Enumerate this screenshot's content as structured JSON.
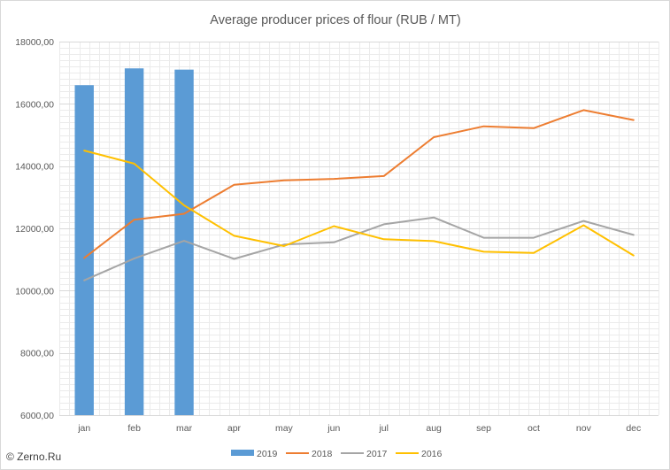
{
  "chart_data": {
    "type": "bar",
    "title": "Average producer prices of flour (RUB / MT)",
    "xlabel": "",
    "ylabel": "",
    "categories": [
      "jan",
      "feb",
      "mar",
      "apr",
      "may",
      "jun",
      "jul",
      "aug",
      "sep",
      "oct",
      "nov",
      "dec"
    ],
    "ylim": [
      6000,
      18000
    ],
    "yticks": [
      6000,
      8000,
      10000,
      12000,
      14000,
      16000,
      18000
    ],
    "ytick_labels": [
      "6000,00",
      "8000,00",
      "10000,00",
      "12000,00",
      "14000,00",
      "16000,00",
      "18000,00"
    ],
    "grid": true,
    "legend_position": "bottom",
    "series": [
      {
        "name": "2019",
        "kind": "bar",
        "color": "#5b9bd5",
        "values": [
          16600,
          17140,
          17100,
          null,
          null,
          null,
          null,
          null,
          null,
          null,
          null,
          null
        ]
      },
      {
        "name": "2018",
        "kind": "line",
        "color": "#ed7d31",
        "values": [
          11050,
          12280,
          12470,
          13400,
          13540,
          13590,
          13680,
          14930,
          15280,
          15220,
          15800,
          15480
        ]
      },
      {
        "name": "2017",
        "kind": "line",
        "color": "#a5a5a5",
        "values": [
          10330,
          11030,
          11600,
          11020,
          11480,
          11550,
          12130,
          12350,
          11700,
          11700,
          12240,
          11790
        ]
      },
      {
        "name": "2016",
        "kind": "line",
        "color": "#ffc000",
        "values": [
          14500,
          14080,
          12740,
          11760,
          11430,
          12070,
          11650,
          11590,
          11250,
          11210,
          12100,
          11130
        ]
      }
    ]
  },
  "footer": {
    "credit": "© Zerno.Ru"
  }
}
